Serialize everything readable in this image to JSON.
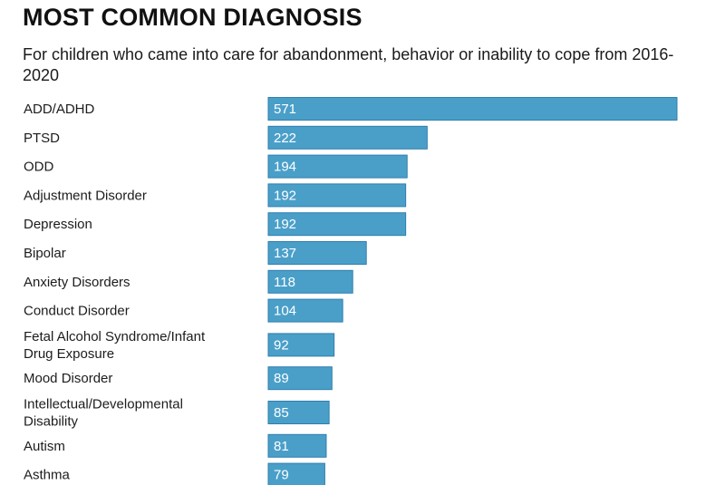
{
  "header": {
    "title": "MOST COMMON DIAGNOSIS",
    "subtitle": "For children who came into care for abandonment, behavior or inability to cope from 2016-2020"
  },
  "colors": {
    "bar_fill": "#4a9fc9",
    "bar_stroke": "#2f7fae",
    "value_text": "#ffffff"
  },
  "chart_data": {
    "type": "bar",
    "orientation": "horizontal",
    "title": "MOST COMMON DIAGNOSIS",
    "subtitle": "For children who came into care for abandonment, behavior or inability to cope from 2016-2020",
    "categories": [
      "ADD/ADHD",
      "PTSD",
      "ODD",
      "Adjustment Disorder",
      "Depression",
      "Bipolar",
      "Anxiety Disorders",
      "Conduct Disorder",
      "Fetal Alcohol Syndrome/Infant Drug Exposure",
      "Mood Disorder",
      "Intellectual/Developmental Disability",
      "Autism",
      "Asthma"
    ],
    "values": [
      571,
      222,
      194,
      192,
      192,
      137,
      118,
      104,
      92,
      89,
      85,
      81,
      79
    ],
    "xlim": [
      0,
      571
    ],
    "grid": false,
    "legend": "none",
    "data_labels": "inside-left"
  }
}
